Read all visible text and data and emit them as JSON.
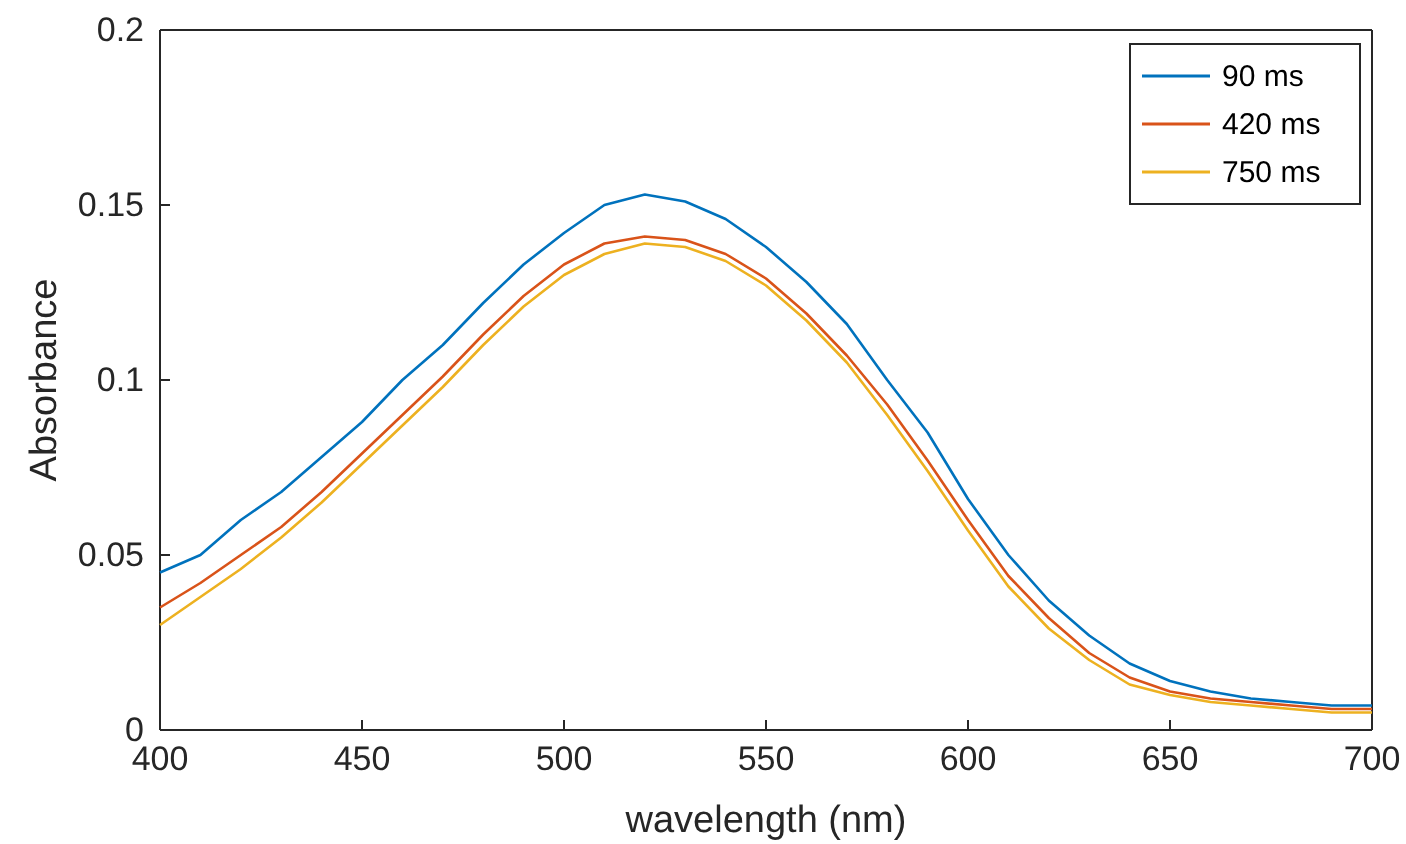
{
  "chart_data": {
    "type": "line",
    "xlabel": "wavelength (nm)",
    "ylabel": "Absorbance",
    "x": [
      400,
      410,
      420,
      430,
      440,
      450,
      460,
      470,
      480,
      490,
      500,
      510,
      520,
      530,
      540,
      550,
      560,
      570,
      580,
      590,
      600,
      610,
      620,
      630,
      640,
      650,
      660,
      670,
      680,
      690,
      700
    ],
    "xlim": [
      400,
      700
    ],
    "xticks": [
      400,
      450,
      500,
      550,
      600,
      650,
      700
    ],
    "ylim": [
      0,
      0.2
    ],
    "yticks": [
      0,
      0.05,
      0.1,
      0.15,
      0.2
    ],
    "grid": false,
    "legend": "top right",
    "marker": "none",
    "line_style": "solid",
    "series": [
      {
        "name": "90 ms",
        "color": "#0072bd",
        "values": [
          0.045,
          0.05,
          0.06,
          0.068,
          0.078,
          0.088,
          0.1,
          0.11,
          0.122,
          0.133,
          0.142,
          0.15,
          0.153,
          0.151,
          0.146,
          0.138,
          0.128,
          0.116,
          0.1,
          0.085,
          0.066,
          0.05,
          0.037,
          0.027,
          0.019,
          0.014,
          0.011,
          0.009,
          0.008,
          0.007,
          0.007
        ]
      },
      {
        "name": "420 ms",
        "color": "#d95319",
        "values": [
          0.035,
          0.042,
          0.05,
          0.058,
          0.068,
          0.079,
          0.09,
          0.101,
          0.113,
          0.124,
          0.133,
          0.139,
          0.141,
          0.14,
          0.136,
          0.129,
          0.119,
          0.107,
          0.093,
          0.077,
          0.06,
          0.044,
          0.032,
          0.022,
          0.015,
          0.011,
          0.009,
          0.008,
          0.007,
          0.006,
          0.006
        ]
      },
      {
        "name": "750 ms",
        "color": "#edb120",
        "values": [
          0.03,
          0.038,
          0.046,
          0.055,
          0.065,
          0.076,
          0.087,
          0.098,
          0.11,
          0.121,
          0.13,
          0.136,
          0.139,
          0.138,
          0.134,
          0.127,
          0.117,
          0.105,
          0.09,
          0.074,
          0.057,
          0.041,
          0.029,
          0.02,
          0.013,
          0.01,
          0.008,
          0.007,
          0.006,
          0.005,
          0.005
        ]
      }
    ]
  }
}
